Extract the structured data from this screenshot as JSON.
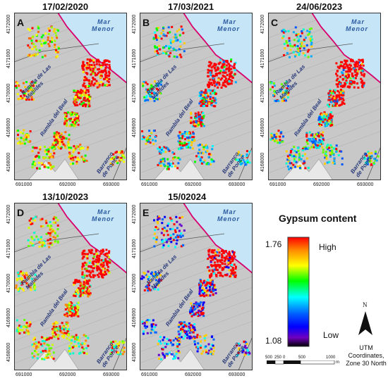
{
  "panels": [
    {
      "id": "A",
      "date": "17/02/2020"
    },
    {
      "id": "B",
      "date": "17/03/2021"
    },
    {
      "id": "C",
      "date": "24/06/2023"
    },
    {
      "id": "D",
      "date": "13/10/2023"
    },
    {
      "id": "E",
      "date": "15/02024"
    }
  ],
  "y_ticks": [
    "4172000",
    "4171000",
    "4170000",
    "4169000",
    "4168000"
  ],
  "x_ticks": [
    "691000",
    "692000",
    "693000"
  ],
  "labels": {
    "sea_line1": "Mar",
    "sea_line2": "Menor",
    "rambla_las_matildes": "Rambla de Las Matildes",
    "rambla_del_beal": "Rambla del Beal",
    "barranco_de_ponce": "Barranco de Ponce"
  },
  "legend": {
    "title": "Gypsum content",
    "max_value": "1.76",
    "min_value": "1.08",
    "high_label": "High",
    "low_label": "Low",
    "colors": [
      "#ff0000",
      "#ff8c00",
      "#ffff00",
      "#7fff00",
      "#00ff00",
      "#00ffff",
      "#0080ff",
      "#0000ff",
      "#8000ff",
      "#000000"
    ]
  },
  "north_label": "N",
  "utm_note": [
    "UTM",
    "Coordinates,",
    "Zone 30 North"
  ],
  "scale_bar": [
    "500",
    "250",
    "0",
    "500",
    "1000"
  ],
  "scale_unit": "m",
  "colors": {
    "sea": "#c6e6f7",
    "land": "#c8c8c8",
    "shoreline": "#d9006e"
  }
}
